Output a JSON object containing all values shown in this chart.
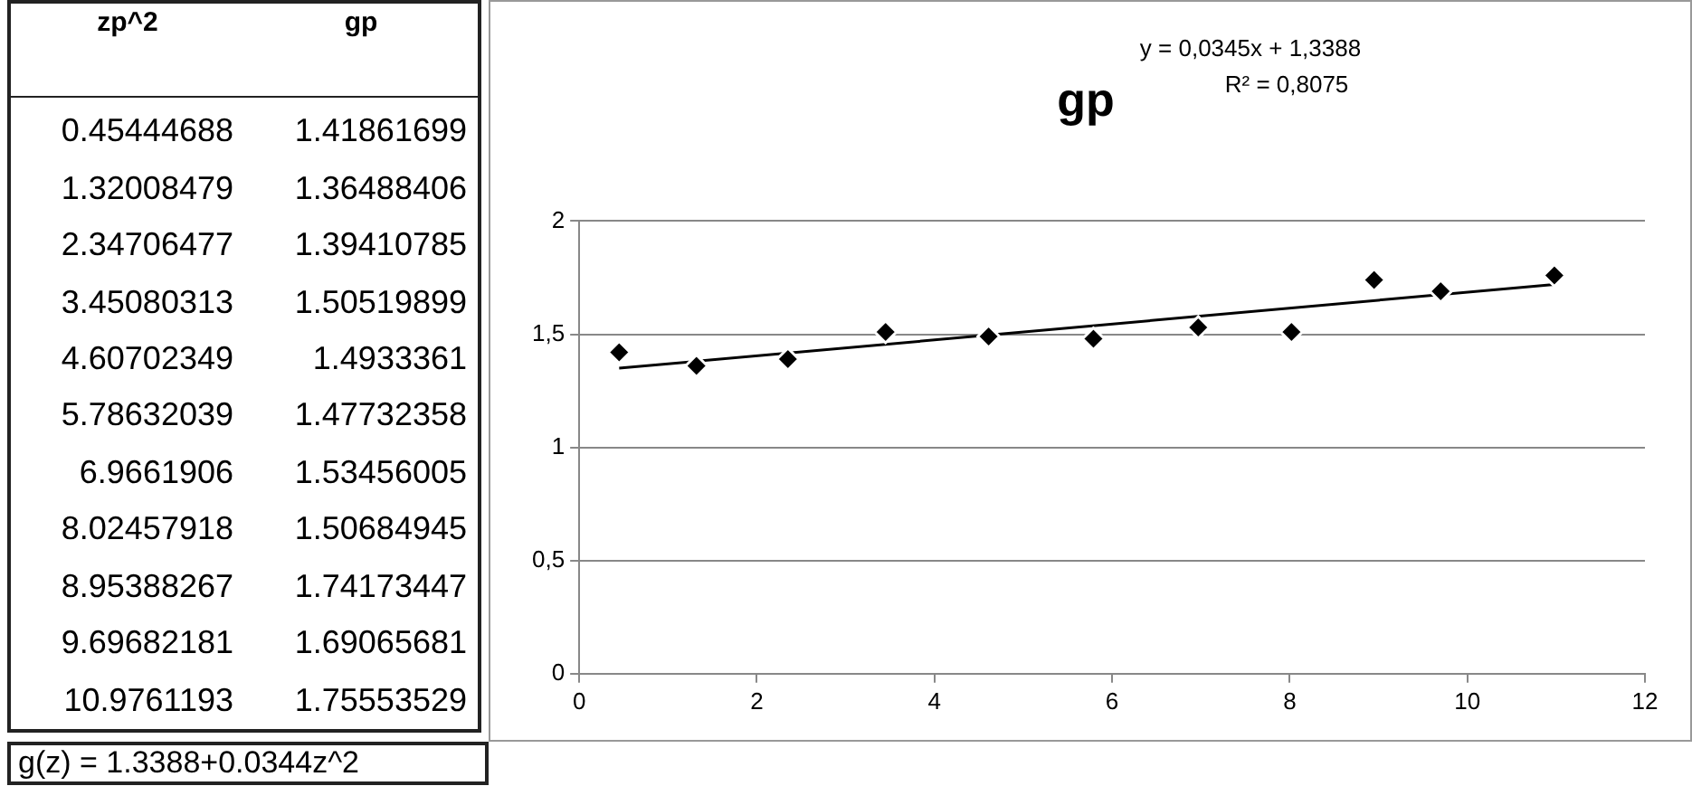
{
  "chart_data": [
    {
      "type": "other",
      "annotations": [
        "zp^2",
        "gp",
        "0.45444688",
        "1.41861699",
        "1.32008479",
        "1.36488406",
        "2.34706477",
        "1.39410785",
        "3.45080313",
        "1.50519899",
        "4.60702349",
        "1.4933361",
        "5.78632039",
        "1.47732358",
        "6.9661906",
        "1.53456005",
        "8.02457918",
        "1.50684945",
        "8.95388267",
        "1.74173447",
        "9.69682181",
        "1.69065681",
        "10.9761193",
        "1.75553529",
        "g(z) = 1.3388+0.0344z^2"
      ]
    },
    {
      "type": "scatter",
      "title": "gp",
      "x": [
        0.45,
        1.32,
        2.35,
        3.45,
        4.61,
        5.79,
        6.97,
        8.02,
        8.95,
        9.7,
        10.98
      ],
      "series": [
        {
          "type": "scatter",
          "color": "#000000",
          "values": [
            1.42,
            1.36,
            1.39,
            1.51,
            1.49,
            1.48,
            1.53,
            1.51,
            1.74,
            1.69,
            1.76
          ]
        },
        {
          "type": "line",
          "color": "#000000",
          "x": [
            0.45,
            10.98
          ],
          "values": [
            1.35,
            1.72
          ],
          "marker": "none"
        }
      ],
      "xlim": [
        0,
        12
      ],
      "xticks": [
        0,
        2,
        4,
        6,
        8,
        10,
        12
      ],
      "ylim": [
        0,
        2
      ],
      "yticks": [
        0,
        {
          "value": 0.5,
          "label": "0,5"
        },
        1,
        {
          "value": 1.5,
          "label": "1,5"
        },
        2
      ],
      "grid": "y",
      "legend": false,
      "marker": "diamond",
      "annotations": [
        "y = 0,0345x + 1,3388",
        "R² = 0,8075"
      ]
    }
  ]
}
